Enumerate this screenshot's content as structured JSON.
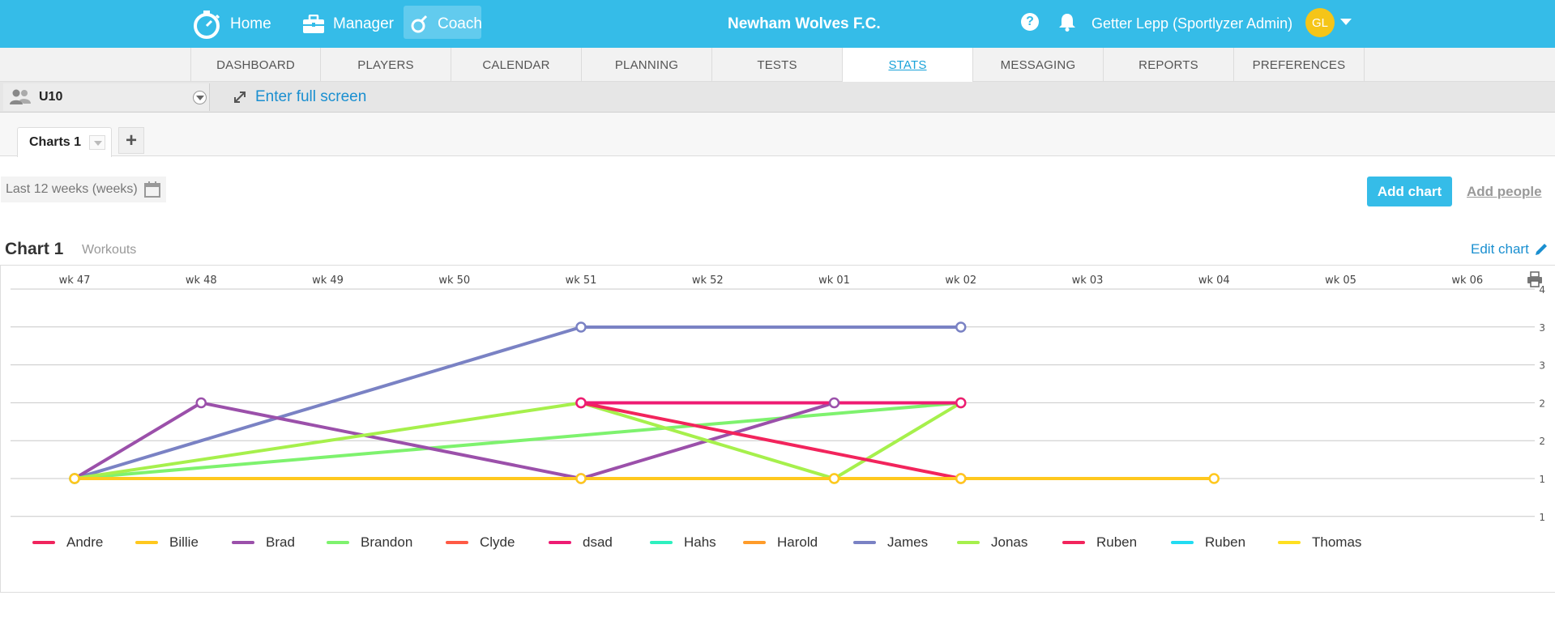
{
  "topbar": {
    "home_label": "Home",
    "manager_label": "Manager",
    "coach_label": "Coach",
    "club_name": "Newham Wolves F.C.",
    "help_label": "?",
    "user_name": "Getter Lepp (Sportlyzer Admin)",
    "avatar_initials": "GL"
  },
  "nav": {
    "tabs": [
      "DASHBOARD",
      "PLAYERS",
      "CALENDAR",
      "PLANNING",
      "TESTS",
      "STATS",
      "MESSAGING",
      "REPORTS",
      "PREFERENCES"
    ],
    "active": "STATS"
  },
  "groupbar": {
    "group": "U10",
    "fullscreen_label": "Enter full screen"
  },
  "charttabs": {
    "tab_label": "Charts 1",
    "add_label": "+"
  },
  "filters": {
    "period_label": "Last 12 weeks (weeks)",
    "add_chart_label": "Add chart",
    "add_people_label": "Add people"
  },
  "chart_header": {
    "title": "Chart 1",
    "subtitle": "Workouts",
    "edit_label": "Edit chart"
  },
  "chart_data": {
    "type": "line",
    "x": [
      "wk 47",
      "wk 48",
      "wk 49",
      "wk 50",
      "wk 51",
      "wk 52",
      "wk 01",
      "wk 02",
      "wk 03",
      "wk 04",
      "wk 05",
      "wk 06"
    ],
    "y_tick_labels": [
      "4",
      "3",
      "3",
      "2",
      "2",
      "1",
      "1"
    ],
    "ylim": [
      0.5,
      3.5
    ],
    "grid": true,
    "legend_position": "bottom",
    "series": [
      {
        "name": "Andre",
        "color": "#f0245d",
        "points": []
      },
      {
        "name": "Billie",
        "color": "#ffc81e",
        "points": [
          [
            "wk 47",
            1
          ],
          [
            "wk 51",
            1
          ],
          [
            "wk 01",
            1
          ],
          [
            "wk 02",
            1
          ],
          [
            "wk 04",
            1
          ]
        ]
      },
      {
        "name": "Brad",
        "color": "#9b50aa",
        "points": [
          [
            "wk 47",
            1
          ],
          [
            "wk 48",
            2
          ],
          [
            "wk 51",
            1
          ],
          [
            "wk 01",
            2
          ]
        ]
      },
      {
        "name": "Brandon",
        "color": "#7ef26e",
        "points": [
          [
            "wk 47",
            1
          ],
          [
            "wk 02",
            2
          ]
        ]
      },
      {
        "name": "Clyde",
        "color": "#ff5a45",
        "points": []
      },
      {
        "name": "dsad",
        "color": "#ee1b73",
        "points": [
          [
            "wk 51",
            2
          ],
          [
            "wk 02",
            2
          ]
        ]
      },
      {
        "name": "Hahs",
        "color": "#2ef0bf",
        "points": []
      },
      {
        "name": "Harold",
        "color": "#ff9c2a",
        "points": []
      },
      {
        "name": "James",
        "color": "#7a82c4",
        "points": [
          [
            "wk 47",
            1
          ],
          [
            "wk 51",
            3
          ],
          [
            "wk 02",
            3
          ]
        ]
      },
      {
        "name": "Jonas",
        "color": "#a6f04c",
        "points": [
          [
            "wk 47",
            1
          ],
          [
            "wk 51",
            2
          ],
          [
            "wk 01",
            1
          ],
          [
            "wk 02",
            2
          ]
        ]
      },
      {
        "name": "Ruben",
        "color": "#f2245c",
        "points": [
          [
            "wk 51",
            2
          ],
          [
            "wk 02",
            1
          ]
        ]
      },
      {
        "name": "Ruben",
        "color": "#22dcf2",
        "points": []
      },
      {
        "name": "Thomas",
        "color": "#ffe020",
        "points": []
      }
    ]
  }
}
